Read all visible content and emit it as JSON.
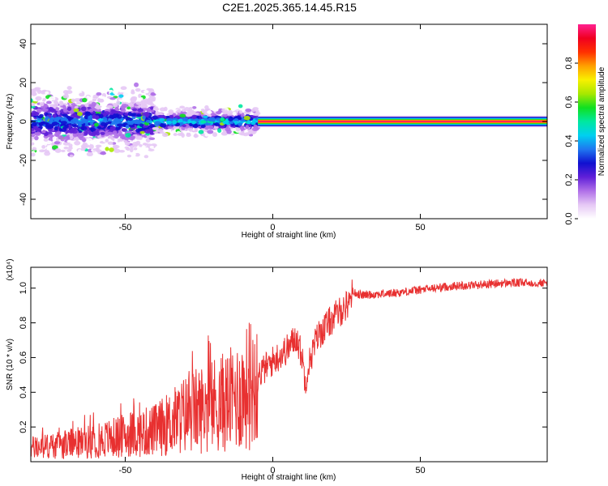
{
  "title": "C2E1.2025.365.14.45.R15",
  "chart_data": [
    {
      "type": "heatmap",
      "name": "spectrogram",
      "xlabel": "Height of straight line (km)",
      "ylabel": "Frequency (Hz)",
      "xlim": [
        -82,
        93
      ],
      "ylim": [
        -50,
        50
      ],
      "xticks": [
        -50,
        0,
        50
      ],
      "yticks": [
        -40,
        -20,
        0,
        20,
        40
      ],
      "colorbar": {
        "label": "Normalized spectral amplitude",
        "range": [
          0.0,
          1.0
        ],
        "ticks": [
          0.0,
          0.2,
          0.4,
          0.6,
          0.8
        ],
        "tick_labels": [
          "0.0",
          "0.2",
          "0.4",
          "0.6",
          "0.8"
        ],
        "colors": [
          "#ffffff",
          "#e6c8f5",
          "#b070e8",
          "#6020d8",
          "#1010d0",
          "#1f77f0",
          "#00d0f0",
          "#00e8a0",
          "#10e020",
          "#a8e800",
          "#f8f000",
          "#ffa000",
          "#ff3000",
          "#f00020",
          "#ff2090"
        ]
      },
      "description_points": [
        {
          "x_range": [
            -82,
            -40
          ],
          "center_hz": 0,
          "spread_hz": 12,
          "amplitude": 0.3
        },
        {
          "x_range": [
            -40,
            -5
          ],
          "center_hz": 0,
          "spread_hz": 5,
          "amplitude": 0.4
        },
        {
          "x_range": [
            -5,
            93
          ],
          "center_hz": 0,
          "spread_hz": 1.5,
          "amplitude": 0.95
        }
      ]
    },
    {
      "type": "line",
      "name": "snr",
      "xlabel": "Height of straight line (km)",
      "ylabel": "SNR (10 * v/v)",
      "y_multiplier": "(x10⁴)",
      "xlim": [
        -82,
        93
      ],
      "ylim": [
        0.0,
        1.12
      ],
      "xticks": [
        -50,
        0,
        50
      ],
      "yticks": [
        0.2,
        0.4,
        0.6,
        0.8,
        1.0
      ],
      "ytick_labels": [
        "0.2",
        "0.4",
        "0.6",
        "0.8",
        "1.0"
      ],
      "color": "#e83030",
      "series": [
        {
          "name": "SNR envelope",
          "x": [
            -82,
            -70,
            -60,
            -50,
            -40,
            -35,
            -30,
            -25,
            -20,
            -15,
            -10,
            -5,
            0,
            5,
            8,
            10,
            11,
            12,
            15,
            20,
            25,
            27,
            30,
            40,
            50,
            60,
            70,
            80,
            93
          ],
          "y": [
            0.08,
            0.1,
            0.12,
            0.15,
            0.18,
            0.22,
            0.27,
            0.3,
            0.33,
            0.35,
            0.4,
            0.5,
            0.58,
            0.65,
            0.72,
            0.6,
            0.46,
            0.55,
            0.72,
            0.82,
            0.9,
            0.98,
            0.96,
            0.97,
            0.99,
            1.01,
            1.02,
            1.03,
            1.03
          ]
        }
      ]
    }
  ]
}
